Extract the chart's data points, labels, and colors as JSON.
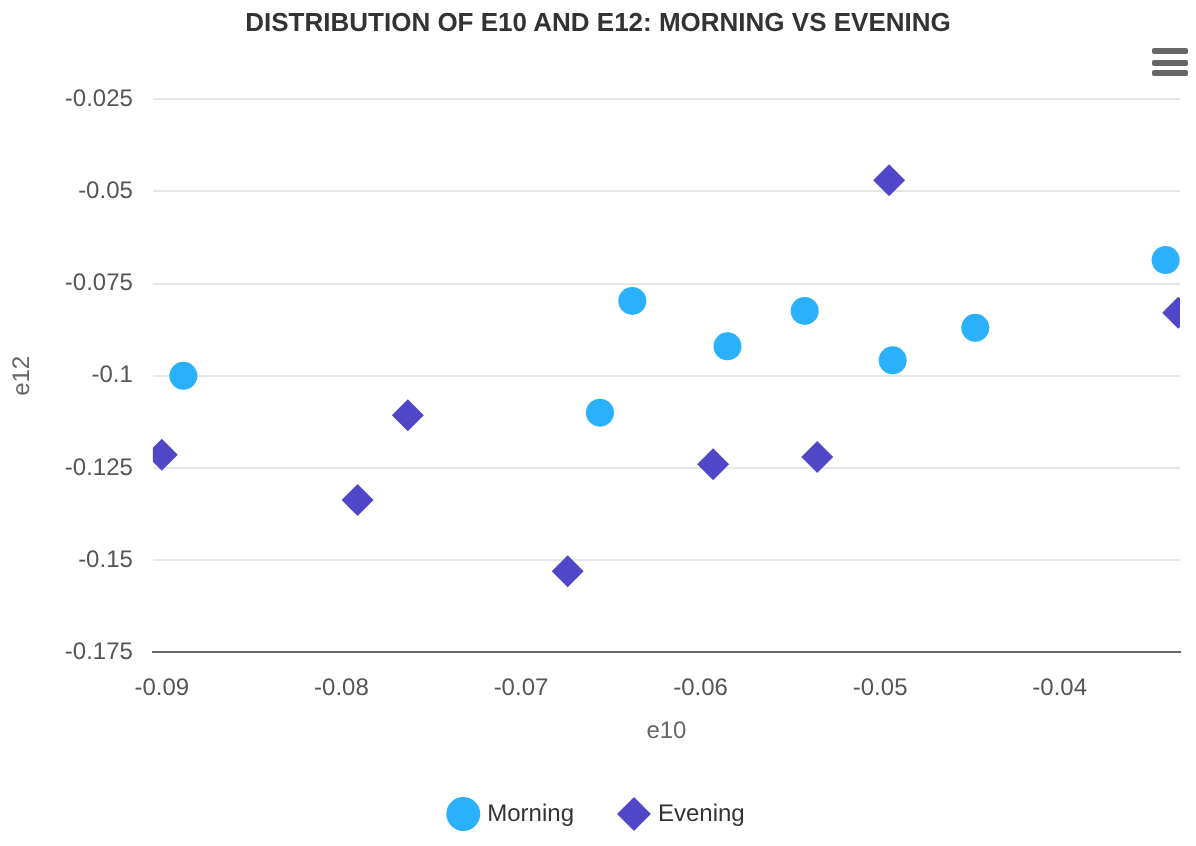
{
  "chart_data": {
    "type": "scatter",
    "title": "DISTRIBUTION OF E10 AND E12: MORNING VS EVENING",
    "xlabel": "e10",
    "ylabel": "e12",
    "xlim": [
      -0.0905,
      -0.0333
    ],
    "xticks": [
      -0.09,
      -0.08,
      -0.07,
      -0.06,
      -0.05,
      -0.04
    ],
    "ylim": [
      -0.175,
      -0.025
    ],
    "yticks": [
      -0.175,
      -0.15,
      -0.125,
      -0.1,
      -0.075,
      -0.05,
      -0.025
    ],
    "grid": "y",
    "legend": "bottom",
    "series": [
      {
        "name": "Morning",
        "color": "#2bb0fb",
        "marker": "circle",
        "x": [
          -0.0888,
          -0.0656,
          -0.0638,
          -0.0585,
          -0.0542,
          -0.0493,
          -0.0447,
          -0.0341
        ],
        "values": [
          -0.1,
          -0.11,
          -0.0797,
          -0.092,
          -0.0824,
          -0.0958,
          -0.087,
          -0.0686
        ]
      },
      {
        "name": "Evening",
        "color": "#5046c8",
        "marker": "diamond",
        "x": [
          -0.09,
          -0.0791,
          -0.0763,
          -0.0674,
          -0.0593,
          -0.0535,
          -0.0495,
          -0.0334
        ],
        "values": [
          -0.1214,
          -0.1337,
          -0.1107,
          -0.153,
          -0.124,
          -0.122,
          -0.047,
          -0.0829
        ]
      }
    ]
  }
}
